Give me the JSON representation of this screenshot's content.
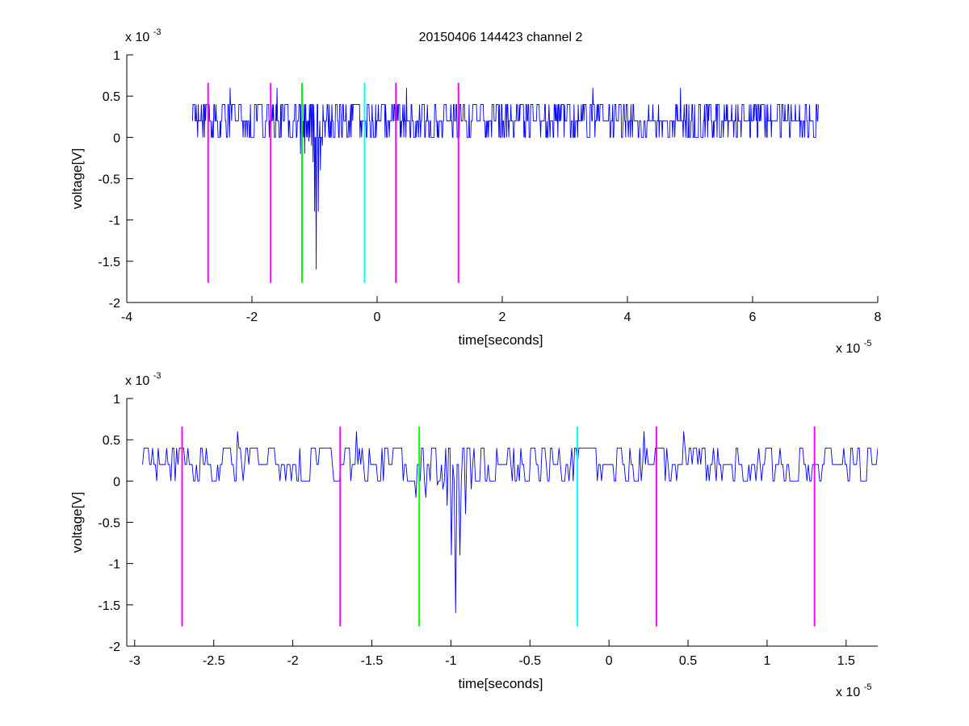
{
  "figure": {
    "title": "20150406 144423 channel 2"
  },
  "colors": {
    "signal": "#0000ff",
    "magenta": "#ff00ff",
    "green": "#00ff00",
    "cyan": "#00ffff",
    "axis": "#000000",
    "background": "#ffffff"
  },
  "chart_data": [
    {
      "type": "line",
      "title": "20150406 144423 channel 2",
      "xlabel": "time[seconds]",
      "ylabel": "voltage[V]",
      "x_multiplier": "x 10",
      "x_exponent": "-5",
      "y_multiplier": "x 10",
      "y_exponent": "-3",
      "xlim": [
        -4,
        8
      ],
      "ylim": [
        -2,
        1
      ],
      "x_ticks": [
        -4,
        -2,
        0,
        2,
        4,
        6,
        8
      ],
      "x_tick_labels": [
        "-4",
        "-2",
        "0",
        "2",
        "4",
        "6",
        "8"
      ],
      "y_ticks": [
        1,
        0.5,
        0,
        -0.5,
        -1,
        -1.5,
        -2
      ],
      "y_tick_labels": [
        "1",
        "0.5",
        "0",
        "-0.5",
        "-1",
        "-1.5",
        "-2"
      ],
      "grid": false,
      "signal": {
        "color": "#0000ff",
        "x_start": -2.95,
        "x_end": 7.05,
        "levels": [
          0,
          0.2,
          0.4
        ],
        "dip": {
          "x": -0.97,
          "y": -1.6
        },
        "spikes": [
          {
            "x": -2.35,
            "y": 0.6
          },
          {
            "x": -1.6,
            "y": 0.6
          },
          {
            "x": 0.47,
            "y": 0.6
          },
          {
            "x": 3.45,
            "y": 0.6
          },
          {
            "x": 4.85,
            "y": 0.6
          }
        ]
      },
      "markers": [
        {
          "x": -2.7,
          "color": "#ff00ff",
          "y_range": [
            -1.76,
            0.66
          ]
        },
        {
          "x": -1.7,
          "color": "#ff00ff",
          "y_range": [
            -1.76,
            0.66
          ]
        },
        {
          "x": -1.2,
          "color": "#00ff00",
          "y_range": [
            -1.76,
            0.66
          ]
        },
        {
          "x": -0.2,
          "color": "#00ffff",
          "y_range": [
            -1.76,
            0.66
          ]
        },
        {
          "x": 0.3,
          "color": "#ff00ff",
          "y_range": [
            -1.76,
            0.66
          ]
        },
        {
          "x": 1.3,
          "color": "#ff00ff",
          "y_range": [
            -1.76,
            0.66
          ]
        }
      ]
    },
    {
      "type": "line",
      "title": "",
      "xlabel": "time[seconds]",
      "ylabel": "voltage[V]",
      "x_multiplier": "x 10",
      "x_exponent": "-5",
      "y_multiplier": "x 10",
      "y_exponent": "-3",
      "xlim": [
        -3.05,
        1.7
      ],
      "ylim": [
        -2,
        1
      ],
      "x_ticks": [
        -3,
        -2.5,
        -2,
        -1.5,
        -1,
        -0.5,
        0,
        0.5,
        1,
        1.5
      ],
      "x_tick_labels": [
        "-3",
        "-2.5",
        "-2",
        "-1.5",
        "-1",
        "-0.5",
        "0",
        "0.5",
        "1",
        "1.5"
      ],
      "y_ticks": [
        1,
        0.5,
        0,
        -0.5,
        -1,
        -1.5,
        -2
      ],
      "y_tick_labels": [
        "1",
        "0.5",
        "0",
        "-0.5",
        "-1",
        "-1.5",
        "-2"
      ],
      "grid": false,
      "signal": {
        "color": "#0000ff",
        "x_start": -2.95,
        "x_end": 1.7,
        "levels": [
          0,
          0.2,
          0.4
        ],
        "dip": {
          "x": -0.97,
          "y": -1.6
        },
        "spikes": [
          {
            "x": -2.35,
            "y": 0.6
          },
          {
            "x": -1.6,
            "y": 0.6
          },
          {
            "x": 0.22,
            "y": 0.6
          },
          {
            "x": 0.47,
            "y": 0.6
          }
        ]
      },
      "markers": [
        {
          "x": -2.7,
          "color": "#ff00ff",
          "y_range": [
            -1.76,
            0.66
          ]
        },
        {
          "x": -1.7,
          "color": "#ff00ff",
          "y_range": [
            -1.76,
            0.66
          ]
        },
        {
          "x": -1.2,
          "color": "#00ff00",
          "y_range": [
            -1.76,
            0.66
          ]
        },
        {
          "x": -0.2,
          "color": "#00ffff",
          "y_range": [
            -1.76,
            0.66
          ]
        },
        {
          "x": 0.3,
          "color": "#ff00ff",
          "y_range": [
            -1.76,
            0.66
          ]
        },
        {
          "x": 1.3,
          "color": "#ff00ff",
          "y_range": [
            -1.76,
            0.66
          ]
        }
      ]
    }
  ]
}
